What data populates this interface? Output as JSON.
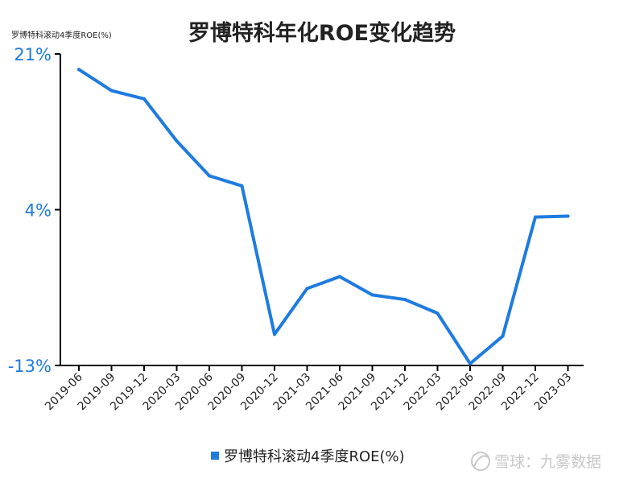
{
  "chart_data": {
    "type": "line",
    "title": "罗博特科年化ROE变化趋势",
    "unit_label": "罗博特科滚动4季度ROE(%)",
    "ylim": [
      -13,
      21
    ],
    "yticks": [
      {
        "value": 21,
        "label": "21%"
      },
      {
        "value": 4,
        "label": "4%"
      },
      {
        "value": -13,
        "label": "-13%"
      }
    ],
    "categories": [
      "2019-06",
      "2019-09",
      "2019-12",
      "2020-03",
      "2020-06",
      "2020-09",
      "2020-12",
      "2021-03",
      "2021-06",
      "2021-09",
      "2021-12",
      "2022-03",
      "2022-06",
      "2022-09",
      "2022-12",
      "2023-03"
    ],
    "series": [
      {
        "name": "罗博特科滚动4季度ROE(%)",
        "color": "#1e7be0",
        "values": [
          19.3,
          17.0,
          16.1,
          11.5,
          7.7,
          6.6,
          -9.6,
          -4.6,
          -3.3,
          -5.3,
          -5.8,
          -7.3,
          -12.8,
          -9.8,
          3.2,
          3.3
        ]
      }
    ],
    "legend_position": "bottom-center",
    "grid": false
  },
  "watermark": {
    "text": "雪球：九雾数据",
    "icon": "snowball-logo-icon"
  },
  "colors": {
    "series": "#1e7be0",
    "axis": "#000000",
    "ytick_label": "#1e7be0"
  }
}
